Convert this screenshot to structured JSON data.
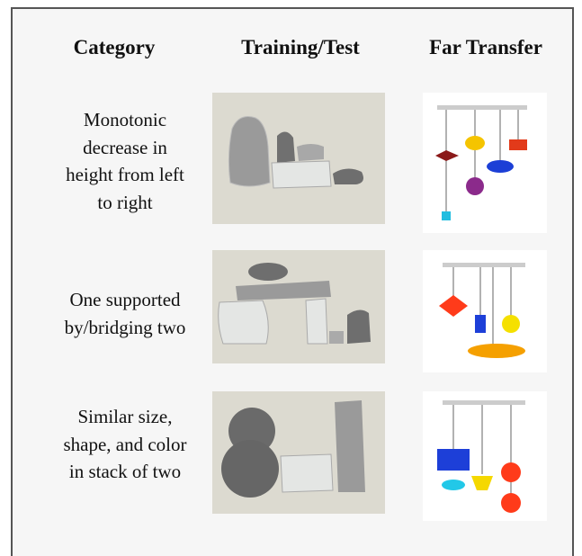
{
  "headers": [
    "Category",
    "Training/Test",
    "Far Transfer"
  ],
  "rows": [
    {
      "category_lines": [
        "Monotonic",
        "decrease in",
        "height from left",
        "to right"
      ]
    },
    {
      "category_lines": [
        "One supported",
        "by/bridging two"
      ]
    },
    {
      "category_lines": [
        "Similar size,",
        "shape, and color",
        "in stack of two"
      ]
    }
  ]
}
